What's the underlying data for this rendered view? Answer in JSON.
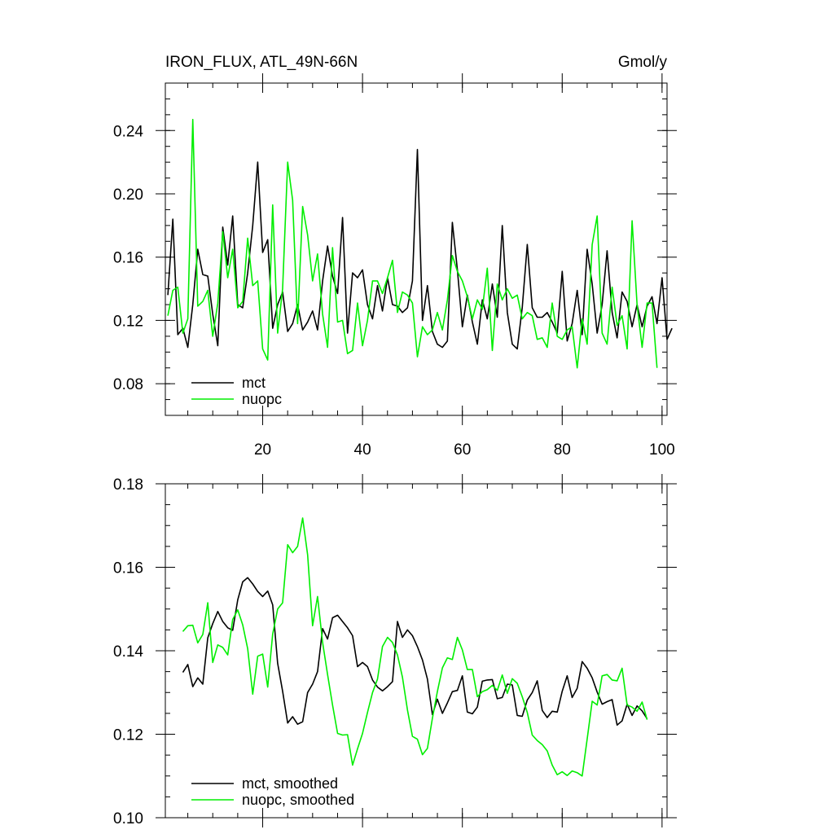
{
  "chart_data": [
    {
      "type": "line",
      "title": "IRON_FLUX, ATL_49N-66N",
      "units": "Gmol/y",
      "xlim": [
        0.5,
        101
      ],
      "ylim": [
        0.06,
        0.27
      ],
      "xticks": [
        20,
        40,
        60,
        80,
        100
      ],
      "xtick_labels": [
        "20",
        "40",
        "60",
        "80",
        "100"
      ],
      "yticks": [
        0.08,
        0.12,
        0.16,
        0.2,
        0.24
      ],
      "ytick_labels": [
        "0.08",
        "0.12",
        "0.16",
        "0.20",
        "0.24"
      ],
      "legend": [
        "mct",
        "nuopc"
      ],
      "legend_position": "lower-left",
      "series": [
        {
          "name": "mct",
          "color": "#000000",
          "x_start": 1,
          "values": [
            0.136,
            0.184,
            0.111,
            0.115,
            0.103,
            0.13,
            0.165,
            0.149,
            0.148,
            0.124,
            0.104,
            0.179,
            0.155,
            0.186,
            0.13,
            0.128,
            0.15,
            0.18,
            0.22,
            0.163,
            0.171,
            0.115,
            0.13,
            0.138,
            0.113,
            0.118,
            0.13,
            0.114,
            0.119,
            0.126,
            0.114,
            0.145,
            0.167,
            0.148,
            0.137,
            0.185,
            0.112,
            0.15,
            0.147,
            0.152,
            0.13,
            0.121,
            0.142,
            0.126,
            0.147,
            0.13,
            0.129,
            0.125,
            0.128,
            0.145,
            0.228,
            0.12,
            0.142,
            0.113,
            0.105,
            0.103,
            0.107,
            0.182,
            0.152,
            0.116,
            0.136,
            0.119,
            0.105,
            0.133,
            0.121,
            0.143,
            0.122,
            0.18,
            0.125,
            0.105,
            0.102,
            0.128,
            0.168,
            0.128,
            0.122,
            0.122,
            0.125,
            0.119,
            0.112,
            0.151,
            0.107,
            0.118,
            0.139,
            0.111,
            0.165,
            0.143,
            0.112,
            0.13,
            0.164,
            0.125,
            0.109,
            0.138,
            0.132,
            0.116,
            0.13,
            0.116,
            0.129,
            0.135,
            0.118,
            0.147,
            0.108,
            0.115
          ]
        },
        {
          "name": "nuopc",
          "color": "#00ee00",
          "x_start": 1,
          "values": [
            0.123,
            0.139,
            0.141,
            0.112,
            0.121,
            0.247,
            0.129,
            0.132,
            0.139,
            0.11,
            0.131,
            0.176,
            0.147,
            0.165,
            0.128,
            0.132,
            0.172,
            0.142,
            0.145,
            0.102,
            0.095,
            0.193,
            0.112,
            0.14,
            0.22,
            0.196,
            0.118,
            0.192,
            0.174,
            0.145,
            0.162,
            0.124,
            0.103,
            0.166,
            0.119,
            0.12,
            0.099,
            0.101,
            0.131,
            0.104,
            0.12,
            0.145,
            0.145,
            0.137,
            0.147,
            0.158,
            0.125,
            0.138,
            0.136,
            0.131,
            0.097,
            0.116,
            0.111,
            0.114,
            0.125,
            0.114,
            0.133,
            0.161,
            0.151,
            0.145,
            0.135,
            0.121,
            0.133,
            0.127,
            0.153,
            0.101,
            0.143,
            0.133,
            0.14,
            0.134,
            0.136,
            0.121,
            0.125,
            0.123,
            0.108,
            0.109,
            0.103,
            0.131,
            0.11,
            0.108,
            0.114,
            0.116,
            0.09,
            0.121,
            0.105,
            0.168,
            0.186,
            0.112,
            0.105,
            0.141,
            0.117,
            0.123,
            0.102,
            0.183,
            0.13,
            0.103,
            0.131,
            0.131,
            0.09
          ]
        }
      ]
    },
    {
      "type": "line",
      "title": "",
      "xlim": [
        0.5,
        101
      ],
      "ylim": [
        0.1,
        0.18
      ],
      "xticks": [
        20,
        40,
        60,
        80,
        100
      ],
      "xtick_labels": [],
      "yticks": [
        0.1,
        0.12,
        0.14,
        0.16,
        0.18
      ],
      "ytick_labels": [
        "0.10",
        "0.12",
        "0.14",
        "0.16",
        "0.18"
      ],
      "legend": [
        "mct, smoothed",
        "nuopc, smoothed"
      ],
      "legend_position": "lower-left",
      "series": [
        {
          "name": "mct, smoothed",
          "color": "#000000",
          "x_start": 4,
          "values": [
            0.1348,
            0.1367,
            0.1314,
            0.1335,
            0.132,
            0.1431,
            0.1465,
            0.1494,
            0.147,
            0.1455,
            0.1449,
            0.1522,
            0.1565,
            0.1575,
            0.156,
            0.1542,
            0.153,
            0.1543,
            0.151,
            0.137,
            0.1303,
            0.1227,
            0.1242,
            0.1224,
            0.123,
            0.13,
            0.132,
            0.135,
            0.1453,
            0.1428,
            0.1479,
            0.1485,
            0.147,
            0.1455,
            0.1436,
            0.1362,
            0.1372,
            0.1362,
            0.133,
            0.1313,
            0.1304,
            0.1314,
            0.1326,
            0.147,
            0.1432,
            0.145,
            0.1436,
            0.141,
            0.1378,
            0.1332,
            0.1247,
            0.1284,
            0.125,
            0.1275,
            0.1302,
            0.1305,
            0.134,
            0.1253,
            0.1249,
            0.1265,
            0.1327,
            0.133,
            0.1331,
            0.1285,
            0.1288,
            0.132,
            0.1318,
            0.1245,
            0.1243,
            0.1282,
            0.13,
            0.1328,
            0.1257,
            0.124,
            0.1255,
            0.1253,
            0.1303,
            0.134,
            0.1288,
            0.131,
            0.1374,
            0.1358,
            0.1335,
            0.1301,
            0.1272,
            0.1278,
            0.1283,
            0.1222,
            0.1232,
            0.1272,
            0.1245,
            0.1268,
            0.1256,
            0.1237
          ]
        },
        {
          "name": "nuopc, smoothed",
          "color": "#00ee00",
          "x_start": 4,
          "values": [
            0.1446,
            0.146,
            0.1461,
            0.1419,
            0.1439,
            0.1515,
            0.1372,
            0.1414,
            0.1408,
            0.139,
            0.1475,
            0.1498,
            0.1462,
            0.1405,
            0.1296,
            0.1387,
            0.1392,
            0.1313,
            0.144,
            0.15,
            0.1515,
            0.1654,
            0.1635,
            0.165,
            0.1718,
            0.163,
            0.146,
            0.153,
            0.142,
            0.1343,
            0.127,
            0.1202,
            0.1198,
            0.1199,
            0.1126,
            0.1165,
            0.1202,
            0.1252,
            0.13,
            0.1332,
            0.141,
            0.1432,
            0.142,
            0.139,
            0.1337,
            0.1258,
            0.1195,
            0.1188,
            0.1151,
            0.1166,
            0.1238,
            0.1302,
            0.1359,
            0.1383,
            0.1379,
            0.1432,
            0.1402,
            0.1355,
            0.1355,
            0.129,
            0.1302,
            0.1307,
            0.1317,
            0.1305,
            0.1342,
            0.1298,
            0.1333,
            0.1322,
            0.129,
            0.1252,
            0.1198,
            0.1185,
            0.1175,
            0.116,
            0.1126,
            0.1103,
            0.111,
            0.1101,
            0.1112,
            0.1108,
            0.11,
            0.1188,
            0.1279,
            0.127,
            0.134,
            0.1343,
            0.133,
            0.1328,
            0.1358,
            0.127,
            0.1265,
            0.1255,
            0.1277,
            0.1235
          ]
        }
      ]
    }
  ]
}
